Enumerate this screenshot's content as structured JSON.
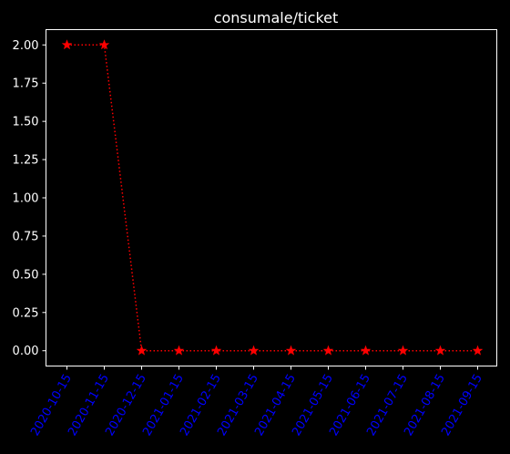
{
  "chart_data": {
    "type": "line",
    "title": "consumale/ticket",
    "xlabel": "",
    "ylabel": "",
    "categories": [
      "2020-10-15",
      "2020-11-15",
      "2020-12-15",
      "2021-01-15",
      "2021-02-15",
      "2021-03-15",
      "2021-04-15",
      "2021-05-15",
      "2021-06-15",
      "2021-07-15",
      "2021-08-15",
      "2021-09-15"
    ],
    "series": [
      {
        "values": [
          2.0,
          2.0,
          0.0,
          0.0,
          0.0,
          0.0,
          0.0,
          0.0,
          0.0,
          0.0,
          0.0,
          0.0
        ]
      }
    ],
    "yticks": [
      "0.00",
      "0.25",
      "0.50",
      "0.75",
      "1.00",
      "1.25",
      "1.50",
      "1.75",
      "2.00"
    ],
    "ylim": [
      -0.1,
      2.1
    ],
    "grid": false,
    "line_style": "dotted",
    "marker": "star",
    "colors": {
      "background": "#000000",
      "series": "#ff0000",
      "axes": "#ffffff",
      "xtick_labels": "#0000ff"
    }
  }
}
